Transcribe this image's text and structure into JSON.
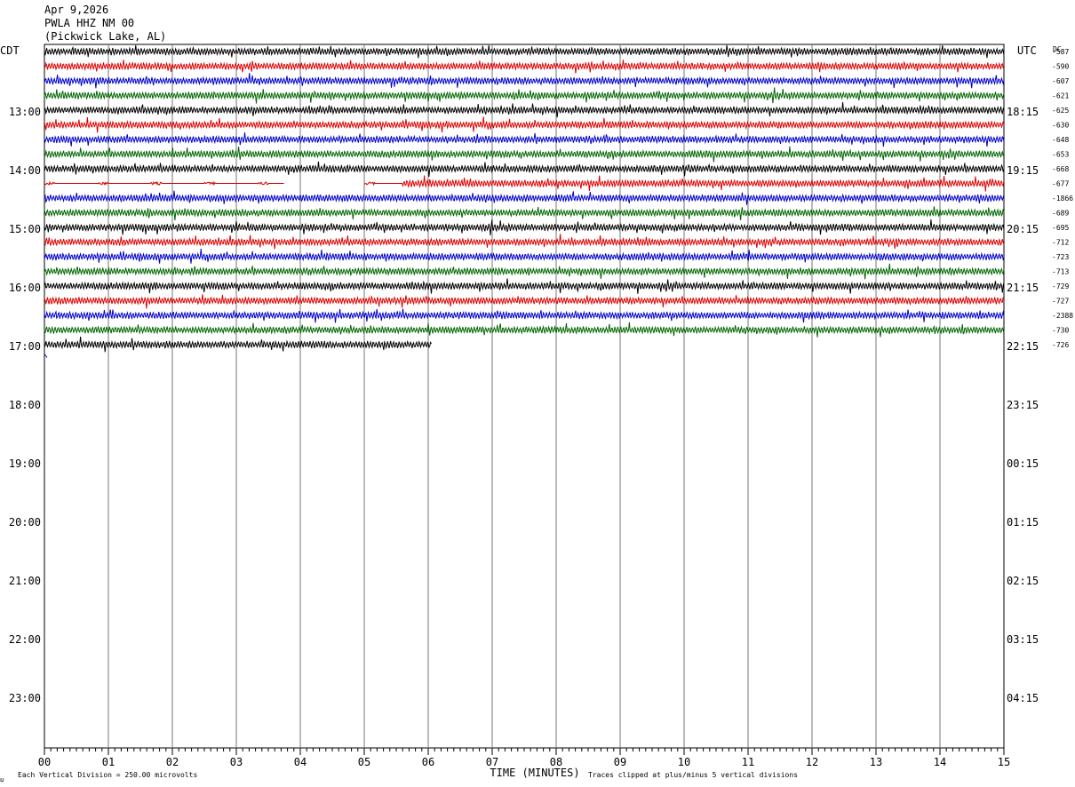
{
  "header": {
    "date": "Apr 9,2026",
    "station": "PWLA HHZ NM 00",
    "location": "(Pickwick Lake, AL)"
  },
  "left_axis_title": "CDT",
  "right_axis_title": "UTC",
  "dc_title": "DC",
  "footer": {
    "scale_note": "Each Vertical Division =  250.00 microvolts",
    "clip_note": "Traces clipped at plus/minus 5 vertical divisions",
    "corner_mark": "ຏ"
  },
  "chart_data": {
    "type": "line",
    "title": "",
    "xlabel": "TIME (MINUTES)",
    "ylabel": "",
    "xlim": [
      0,
      15
    ],
    "x_ticks": [
      "00",
      "01",
      "02",
      "03",
      "04",
      "05",
      "06",
      "07",
      "08",
      "09",
      "10",
      "11",
      "12",
      "13",
      "14",
      "15"
    ],
    "grid": "vertical lines every minute",
    "cdt_hour_labels": [
      "13:00",
      "14:00",
      "15:00",
      "16:00",
      "17:00",
      "18:00",
      "19:00",
      "20:00",
      "21:00",
      "22:00",
      "23:00"
    ],
    "utc_labels": [
      "18:15",
      "19:15",
      "20:15",
      "21:15",
      "22:15",
      "23:15",
      "00:15",
      "01:15",
      "02:15",
      "03:15",
      "04:15"
    ],
    "trace_colors": [
      "#000000",
      "#dd0000",
      "#0000cc",
      "#006600"
    ],
    "traces_per_hour": 4,
    "minutes_per_trace": 15,
    "trace_count": 21,
    "last_trace_end_minute": 6.05,
    "dc_offsets": [
      "-587",
      "-590",
      "-607",
      "-621",
      "-625",
      "-630",
      "-648",
      "-653",
      "-668",
      "-677",
      "-1866",
      "-689",
      "-695",
      "-712",
      "-723",
      "-713",
      "-729",
      "-727",
      "-2388",
      "-730",
      "-726"
    ],
    "flatline_segments": [
      {
        "trace": 9,
        "from_minute": 0.0,
        "to_minute": 3.75
      },
      {
        "trace": 9,
        "from_minute": 5.0,
        "to_minute": 5.6
      }
    ],
    "gap_segments": [
      {
        "trace": 9,
        "from_minute": 3.75,
        "to_minute": 5.0
      }
    ]
  }
}
